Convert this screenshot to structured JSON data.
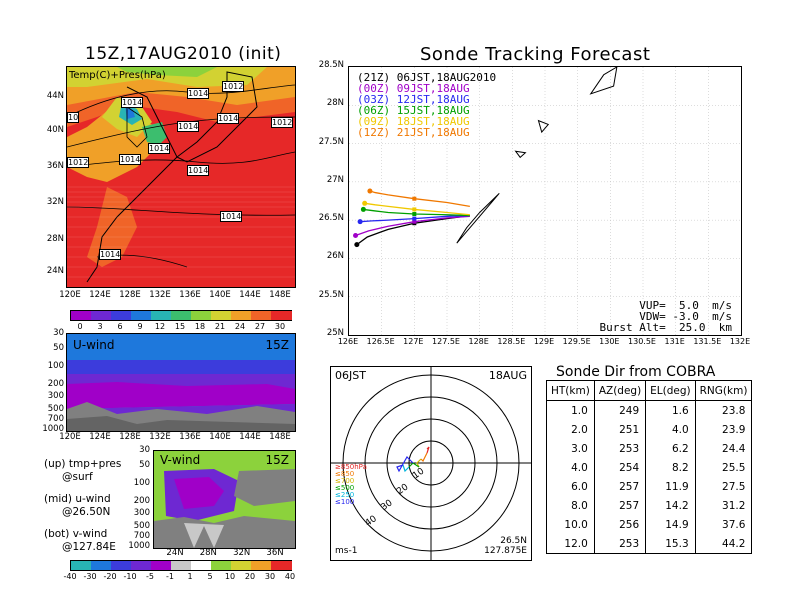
{
  "surface_map": {
    "title": "15Z,17AUG2010 (init)",
    "label": "Temp(C)+Pres(hPa)",
    "y_ticks": [
      "44N",
      "40N",
      "36N",
      "32N",
      "28N",
      "24N"
    ],
    "x_ticks": [
      "120E",
      "124E",
      "128E",
      "132E",
      "136E",
      "140E",
      "144E",
      "148E"
    ],
    "isobar_labels": [
      "1012",
      "1014",
      "1014",
      "1014",
      "1014",
      "1014",
      "1014",
      "1014",
      "1014",
      "1012",
      "1014",
      "1012",
      "1014",
      "10"
    ],
    "colorbar_values": [
      "0",
      "3",
      "6",
      "9",
      "12",
      "15",
      "18",
      "21",
      "24",
      "27",
      "30"
    ],
    "colors": [
      "#a000c8",
      "#6e28d2",
      "#3c3cdc",
      "#1e78dc",
      "#28b4b4",
      "#3cbe6e",
      "#8cd23c",
      "#d2d232",
      "#f0a028",
      "#f06428",
      "#e62828"
    ]
  },
  "u_wind": {
    "label": "U-wind",
    "time": "15Z",
    "y_ticks": [
      "30",
      "50",
      "100",
      "200",
      "300",
      "500",
      "700",
      "1000"
    ],
    "x_ticks": [
      "120E",
      "124E",
      "128E",
      "132E",
      "136E",
      "140E",
      "144E",
      "148E"
    ]
  },
  "v_wind": {
    "label": "V-wind",
    "time": "15Z",
    "y_ticks": [
      "30",
      "50",
      "100",
      "200",
      "300",
      "500",
      "700",
      "1000"
    ],
    "x_ticks": [
      "24N",
      "28N",
      "32N",
      "36N"
    ],
    "colorbar_values": [
      "-40",
      "-30",
      "-20",
      "-10",
      "-5",
      "-1",
      "1",
      "5",
      "10",
      "20",
      "30",
      "40"
    ]
  },
  "notes": {
    "up": "(up) tmp+pres",
    "up2": "@surf",
    "mid": "(mid) u-wind",
    "mid2": "@26.50N",
    "bot": "(bot) v-wind",
    "bot2": "@127.84E"
  },
  "tracking": {
    "title": "Sonde Tracking Forecast",
    "y_ticks": [
      "28.5N",
      "28N",
      "27.5N",
      "27N",
      "26.5N",
      "26N",
      "25.5N",
      "25N"
    ],
    "x_ticks": [
      "126E",
      "126.5E",
      "127E",
      "127.5E",
      "128E",
      "128.5E",
      "129E",
      "129.5E",
      "130E",
      "130.5E",
      "131E",
      "131.5E",
      "132E"
    ],
    "legend": [
      {
        "text": "(21Z) 06JST,18AUG2010",
        "color": "#000000"
      },
      {
        "text": "(00Z) 09JST,18AUG",
        "color": "#a000c8"
      },
      {
        "text": "(03Z) 12JST,18AUG",
        "color": "#2828f0"
      },
      {
        "text": "(06Z) 15JST,18AUG",
        "color": "#00a000"
      },
      {
        "text": "(09Z) 18JST,18AUG",
        "color": "#f0c800"
      },
      {
        "text": "(12Z) 21JST,18AUG",
        "color": "#f07800"
      }
    ],
    "params": [
      "VUP=  5.0  m/s",
      "VDW= -3.0  m/s",
      "Burst Alt=  25.0  km"
    ]
  },
  "hodograph": {
    "time_label": "06JST",
    "date_label": "18AUG",
    "unit": "ms-1",
    "lat": "26.5N",
    "lon": "127.875E",
    "ring_labels": [
      "10",
      "20",
      "30",
      "40"
    ],
    "levels": [
      {
        "text": "≥850hPa",
        "color": "#e62828"
      },
      {
        "text": "≤850",
        "color": "#f07800"
      },
      {
        "text": "≤700",
        "color": "#d2b400"
      },
      {
        "text": "≤500",
        "color": "#00a000"
      },
      {
        "text": "≤250",
        "color": "#00b4dc"
      },
      {
        "text": "≤100",
        "color": "#2828f0"
      }
    ]
  },
  "sonde_table": {
    "title": "Sonde Dir from COBRA",
    "headers": [
      "HT(km)",
      "AZ(deg)",
      "EL(deg)",
      "RNG(km)"
    ],
    "rows": [
      [
        "1.0",
        "249",
        "1.6",
        "23.8"
      ],
      [
        "2.0",
        "251",
        "4.0",
        "23.9"
      ],
      [
        "3.0",
        "253",
        "6.2",
        "24.4"
      ],
      [
        "4.0",
        "254",
        "8.2",
        "25.5"
      ],
      [
        "6.0",
        "257",
        "11.9",
        "27.5"
      ],
      [
        "8.0",
        "257",
        "14.2",
        "31.2"
      ],
      [
        "10.0",
        "256",
        "14.9",
        "37.6"
      ],
      [
        "12.0",
        "253",
        "15.3",
        "44.2"
      ]
    ]
  },
  "chart_data": [
    {
      "type": "table",
      "title": "Sonde Dir from COBRA",
      "columns": [
        "HT(km)",
        "AZ(deg)",
        "EL(deg)",
        "RNG(km)"
      ],
      "rows": [
        [
          1.0,
          249,
          1.6,
          23.8
        ],
        [
          2.0,
          251,
          4.0,
          23.9
        ],
        [
          3.0,
          253,
          6.2,
          24.4
        ],
        [
          4.0,
          254,
          8.2,
          25.5
        ],
        [
          6.0,
          257,
          11.9,
          27.5
        ],
        [
          8.0,
          257,
          14.2,
          31.2
        ],
        [
          10.0,
          256,
          14.9,
          37.6
        ],
        [
          12.0,
          253,
          15.3,
          44.2
        ]
      ]
    },
    {
      "type": "line",
      "title": "Sonde Tracking Forecast",
      "xlim": [
        126,
        132
      ],
      "ylim": [
        25,
        28.5
      ],
      "series": [
        {
          "name": "(21Z) 06JST,18AUG2010",
          "color": "#000000",
          "x": [
            127.85,
            127.5,
            127.0,
            126.6,
            126.28,
            126.12
          ],
          "y": [
            26.56,
            26.52,
            26.46,
            26.38,
            26.28,
            26.18
          ]
        },
        {
          "name": "(00Z) 09JST,18AUG",
          "color": "#a000c8",
          "x": [
            127.85,
            127.5,
            127.0,
            126.6,
            126.3,
            126.1
          ],
          "y": [
            26.55,
            26.53,
            26.48,
            26.42,
            26.36,
            26.3
          ]
        },
        {
          "name": "(03Z) 12JST,18AUG",
          "color": "#2828f0",
          "x": [
            127.85,
            127.5,
            127.0,
            126.6,
            126.35,
            126.17
          ],
          "y": [
            26.56,
            26.55,
            26.52,
            26.5,
            26.49,
            26.48
          ]
        },
        {
          "name": "(06Z) 15JST,18AUG",
          "color": "#00a000",
          "x": [
            127.85,
            127.5,
            127.0,
            126.6,
            126.4,
            126.22
          ],
          "y": [
            26.56,
            26.57,
            26.58,
            26.6,
            26.62,
            26.64
          ]
        },
        {
          "name": "(09Z) 18JST,18AUG",
          "color": "#f0c800",
          "x": [
            127.85,
            127.5,
            127.0,
            126.6,
            126.4,
            126.24
          ],
          "y": [
            26.57,
            26.6,
            26.64,
            26.68,
            26.7,
            26.72
          ]
        },
        {
          "name": "(12Z) 21JST,18AUG",
          "color": "#f07800",
          "x": [
            127.85,
            127.5,
            127.0,
            126.6,
            126.4,
            126.32
          ],
          "y": [
            26.68,
            26.73,
            26.78,
            26.83,
            26.86,
            26.88
          ]
        }
      ]
    }
  ]
}
